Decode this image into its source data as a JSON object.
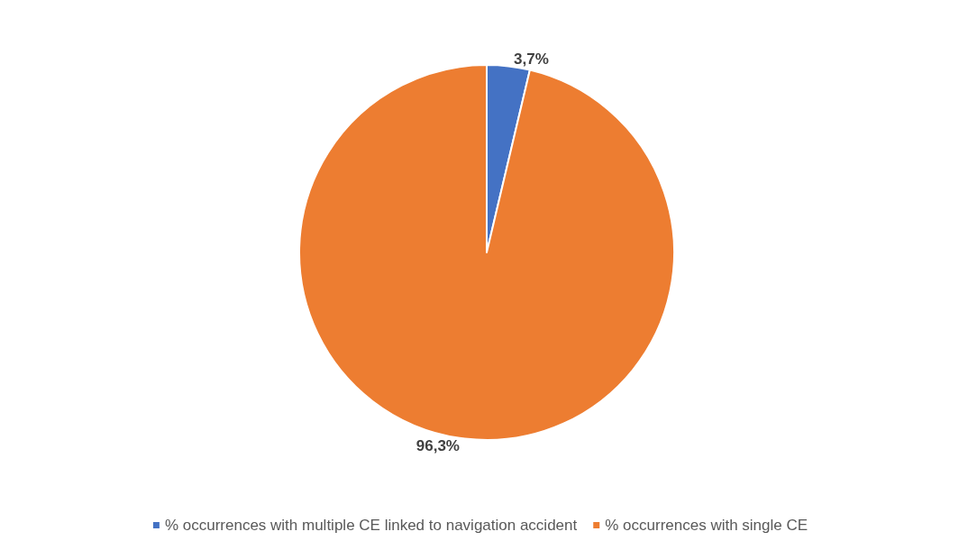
{
  "chart_data": {
    "type": "pie",
    "categories": [
      "% occurrences with multiple CE linked to navigation accident",
      "% occurrences with single CE"
    ],
    "values": [
      3.7,
      96.3
    ],
    "colors": [
      "#4472c4",
      "#ed7d31"
    ],
    "value_labels": [
      "3,7%",
      "96,3%"
    ],
    "legend": "bottom"
  }
}
